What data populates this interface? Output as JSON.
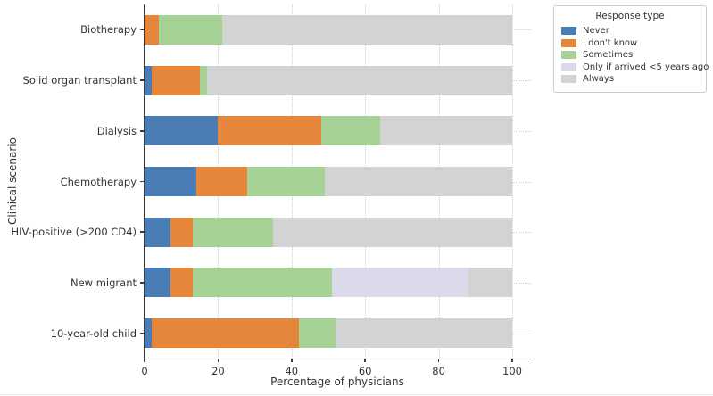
{
  "chart_data": {
    "type": "bar",
    "orientation": "horizontal-stacked",
    "xlabel": "Percentage of physicians",
    "ylabel": "Clinical scenario",
    "xlim": [
      0,
      100
    ],
    "xticks": [
      0,
      20,
      40,
      60,
      80,
      100
    ],
    "grid": "dotted",
    "categories": [
      "Biotherapy",
      "Solid organ transplant",
      "Dialysis",
      "Chemotherapy",
      "HIV-positive (>200 CD4)",
      "New migrant",
      "10-year-old child"
    ],
    "series": [
      {
        "name": "Never",
        "color": "#4a7db6",
        "values": [
          0,
          2,
          20,
          14,
          7,
          7,
          2
        ]
      },
      {
        "name": "I don't know",
        "color": "#e6863a",
        "values": [
          4,
          13,
          28,
          14,
          6,
          6,
          40
        ]
      },
      {
        "name": "Sometimes",
        "color": "#a6d295",
        "values": [
          17,
          2,
          16,
          21,
          22,
          38,
          10
        ]
      },
      {
        "name": "Only if arrived <5 years ago",
        "color": "#dadaea",
        "values": [
          0,
          0,
          0,
          0,
          0,
          37,
          0
        ]
      },
      {
        "name": "Always",
        "color": "#d3d3d3",
        "values": [
          79,
          83,
          36,
          51,
          65,
          12,
          48
        ]
      }
    ],
    "legend": {
      "title": "Response type",
      "position": "outside upper right"
    }
  },
  "style": {
    "background": "#ffffff",
    "spine_color": "#3a3a3a",
    "grid_color": "#cccccc",
    "text_color": "#333333"
  }
}
